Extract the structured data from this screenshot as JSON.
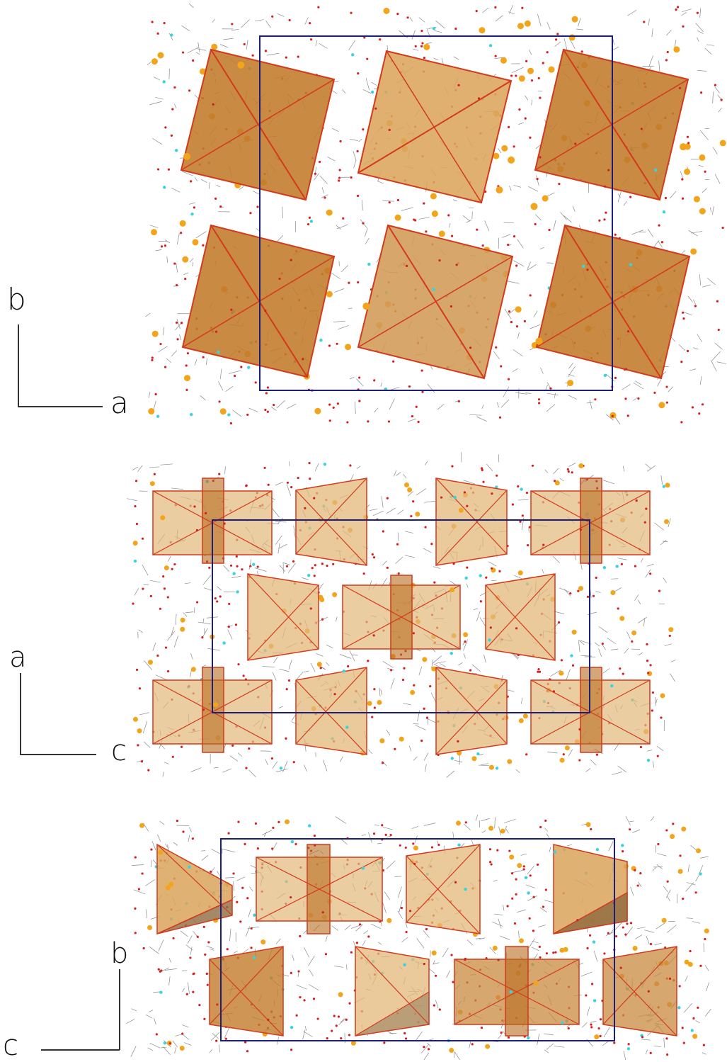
{
  "panels": [
    {
      "vertical_axis": "b",
      "horizontal_axis": "a"
    },
    {
      "vertical_axis": "a",
      "horizontal_axis": "c"
    },
    {
      "vertical_axis": "b",
      "horizontal_axis": "c"
    }
  ],
  "colors": {
    "unit_cell": "#1c1f7a",
    "polyhedron_fill_dark": "#b86d1e",
    "polyhedron_fill_light": "#e3b87a",
    "polyhedron_edge": "#d33a1c",
    "metal_atom": "#f2a51a",
    "oxygen_atom": "#d42020",
    "halide_atom": "#39d3e0",
    "bonds": "#8a8a8a"
  }
}
